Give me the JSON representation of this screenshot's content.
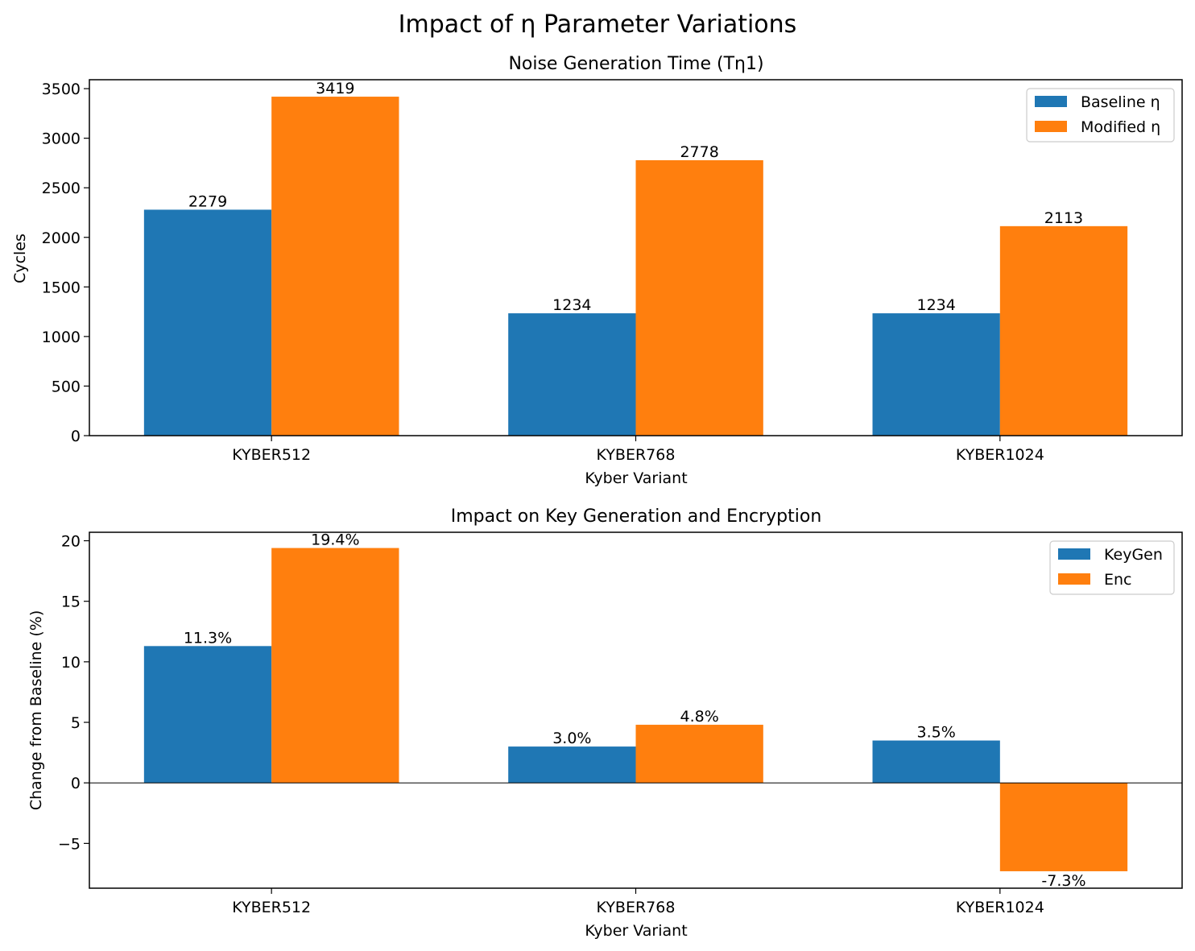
{
  "figure": {
    "suptitle": "Impact of η Parameter Variations"
  },
  "colors": {
    "series1": "#1f77b4",
    "series2": "#ff7f0e"
  },
  "chart_data": [
    {
      "type": "bar",
      "title": "Noise Generation Time (Tη1)",
      "xlabel": "Kyber Variant",
      "ylabel": "Cycles",
      "categories": [
        "KYBER512",
        "KYBER768",
        "KYBER1024"
      ],
      "series": [
        {
          "name": "Baseline η",
          "values": [
            2279,
            1234,
            1234
          ],
          "labels": [
            "2279",
            "1234",
            "1234"
          ]
        },
        {
          "name": "Modified η",
          "values": [
            3419,
            2778,
            2113
          ],
          "labels": [
            "3419",
            "2778",
            "2113"
          ]
        }
      ],
      "ylim": [
        0,
        3590
      ],
      "yticks": [
        0,
        500,
        1000,
        1500,
        2000,
        2500,
        3000,
        3500
      ],
      "ytick_labels": [
        "0",
        "500",
        "1000",
        "1500",
        "2000",
        "2500",
        "3000",
        "3500"
      ],
      "legend_position": "upper right",
      "zero_line": false,
      "grid": false
    },
    {
      "type": "bar",
      "title": "Impact on Key Generation and Encryption",
      "xlabel": "Kyber Variant",
      "ylabel": "Change from Baseline (%)",
      "categories": [
        "KYBER512",
        "KYBER768",
        "KYBER1024"
      ],
      "series": [
        {
          "name": "KeyGen",
          "values": [
            11.3,
            3.0,
            3.5
          ],
          "labels": [
            "11.3%",
            "3.0%",
            "3.5%"
          ]
        },
        {
          "name": "Enc",
          "values": [
            19.4,
            4.8,
            -7.3
          ],
          "labels": [
            "19.4%",
            "4.8%",
            "-7.3%"
          ]
        }
      ],
      "ylim": [
        -8.7,
        20.7
      ],
      "yticks": [
        -5,
        0,
        5,
        10,
        15,
        20
      ],
      "ytick_labels": [
        "−5",
        "0",
        "5",
        "10",
        "15",
        "20"
      ],
      "legend_position": "upper right",
      "zero_line": true,
      "grid": false
    }
  ]
}
